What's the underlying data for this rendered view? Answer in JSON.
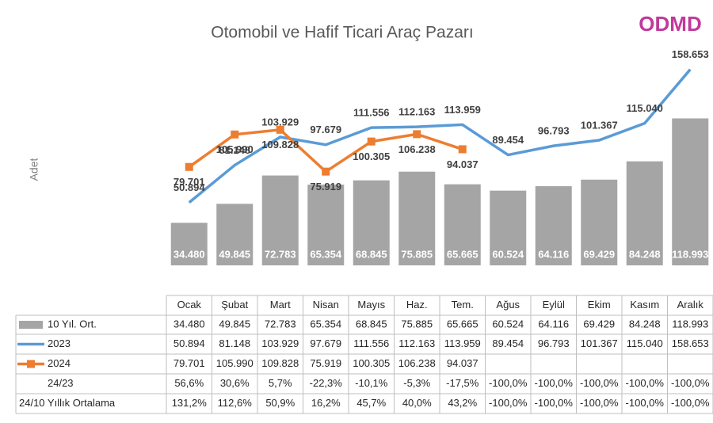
{
  "chart_data": {
    "type": "bar-line",
    "title": "Otomobil ve Hafif Ticari Araç Pazarı",
    "y_label": "Adet",
    "logo": "ODMD",
    "categories": [
      "Ocak",
      "Şubat",
      "Mart",
      "Nisan",
      "Mayıs",
      "Haz.",
      "Tem.",
      "Ağus",
      "Eylül",
      "Ekim",
      "Kasım",
      "Aralık"
    ],
    "ylim": [
      0,
      170000
    ],
    "series": [
      {
        "name": "10 Yıl. Ort.",
        "kind": "bar",
        "color": "#a5a5a5",
        "values": [
          34480,
          49845,
          72783,
          65354,
          68845,
          75885,
          65665,
          60524,
          64116,
          69429,
          84248,
          118993
        ],
        "value_labels": [
          "34.480",
          "49.845",
          "72.783",
          "65.354",
          "68.845",
          "75.885",
          "65.665",
          "60.524",
          "64.116",
          "69.429",
          "84.248",
          "118.993"
        ]
      },
      {
        "name": "2023",
        "kind": "line",
        "color": "#5b9bd5",
        "values": [
          50894,
          81148,
          103929,
          97679,
          111556,
          112163,
          113959,
          89454,
          96793,
          101367,
          115040,
          158653
        ],
        "value_labels": [
          "50.894",
          "81.148",
          "103.929",
          "97.679",
          "111.556",
          "112.163",
          "113.959",
          "89.454",
          "96.793",
          "101.367",
          "115.040",
          "158.653"
        ]
      },
      {
        "name": "2024",
        "kind": "line",
        "color": "#ed7d31",
        "markers": true,
        "values": [
          79701,
          105990,
          109828,
          75919,
          100305,
          106238,
          94037,
          null,
          null,
          null,
          null,
          null
        ],
        "value_labels": [
          "79.701",
          "105.990",
          "109.828",
          "75.919",
          "100.305",
          "106.238",
          "94.037",
          null,
          null,
          null,
          null,
          null
        ]
      }
    ],
    "table_rows": [
      {
        "name": "24/23",
        "values": [
          56.6,
          30.6,
          5.7,
          -22.3,
          -10.1,
          -5.3,
          -17.5,
          -100,
          -100,
          -100,
          -100,
          -100
        ],
        "value_labels": [
          "56,6%",
          "30,6%",
          "5,7%",
          "-22,3%",
          "-10,1%",
          "-5,3%",
          "-17,5%",
          "-100,0%",
          "-100,0%",
          "-100,0%",
          "-100,0%",
          "-100,0%"
        ]
      },
      {
        "name": "24/10 Yıllık Ortalama",
        "values": [
          131.2,
          112.6,
          50.9,
          16.2,
          45.7,
          40.0,
          43.2,
          -100,
          -100,
          -100,
          -100,
          -100
        ],
        "value_labels": [
          "131,2%",
          "112,6%",
          "50,9%",
          "16,2%",
          "45,7%",
          "40,0%",
          "43,2%",
          "-100,0%",
          "-100,0%",
          "-100,0%",
          "-100,0%",
          "-100,0%"
        ]
      }
    ]
  }
}
